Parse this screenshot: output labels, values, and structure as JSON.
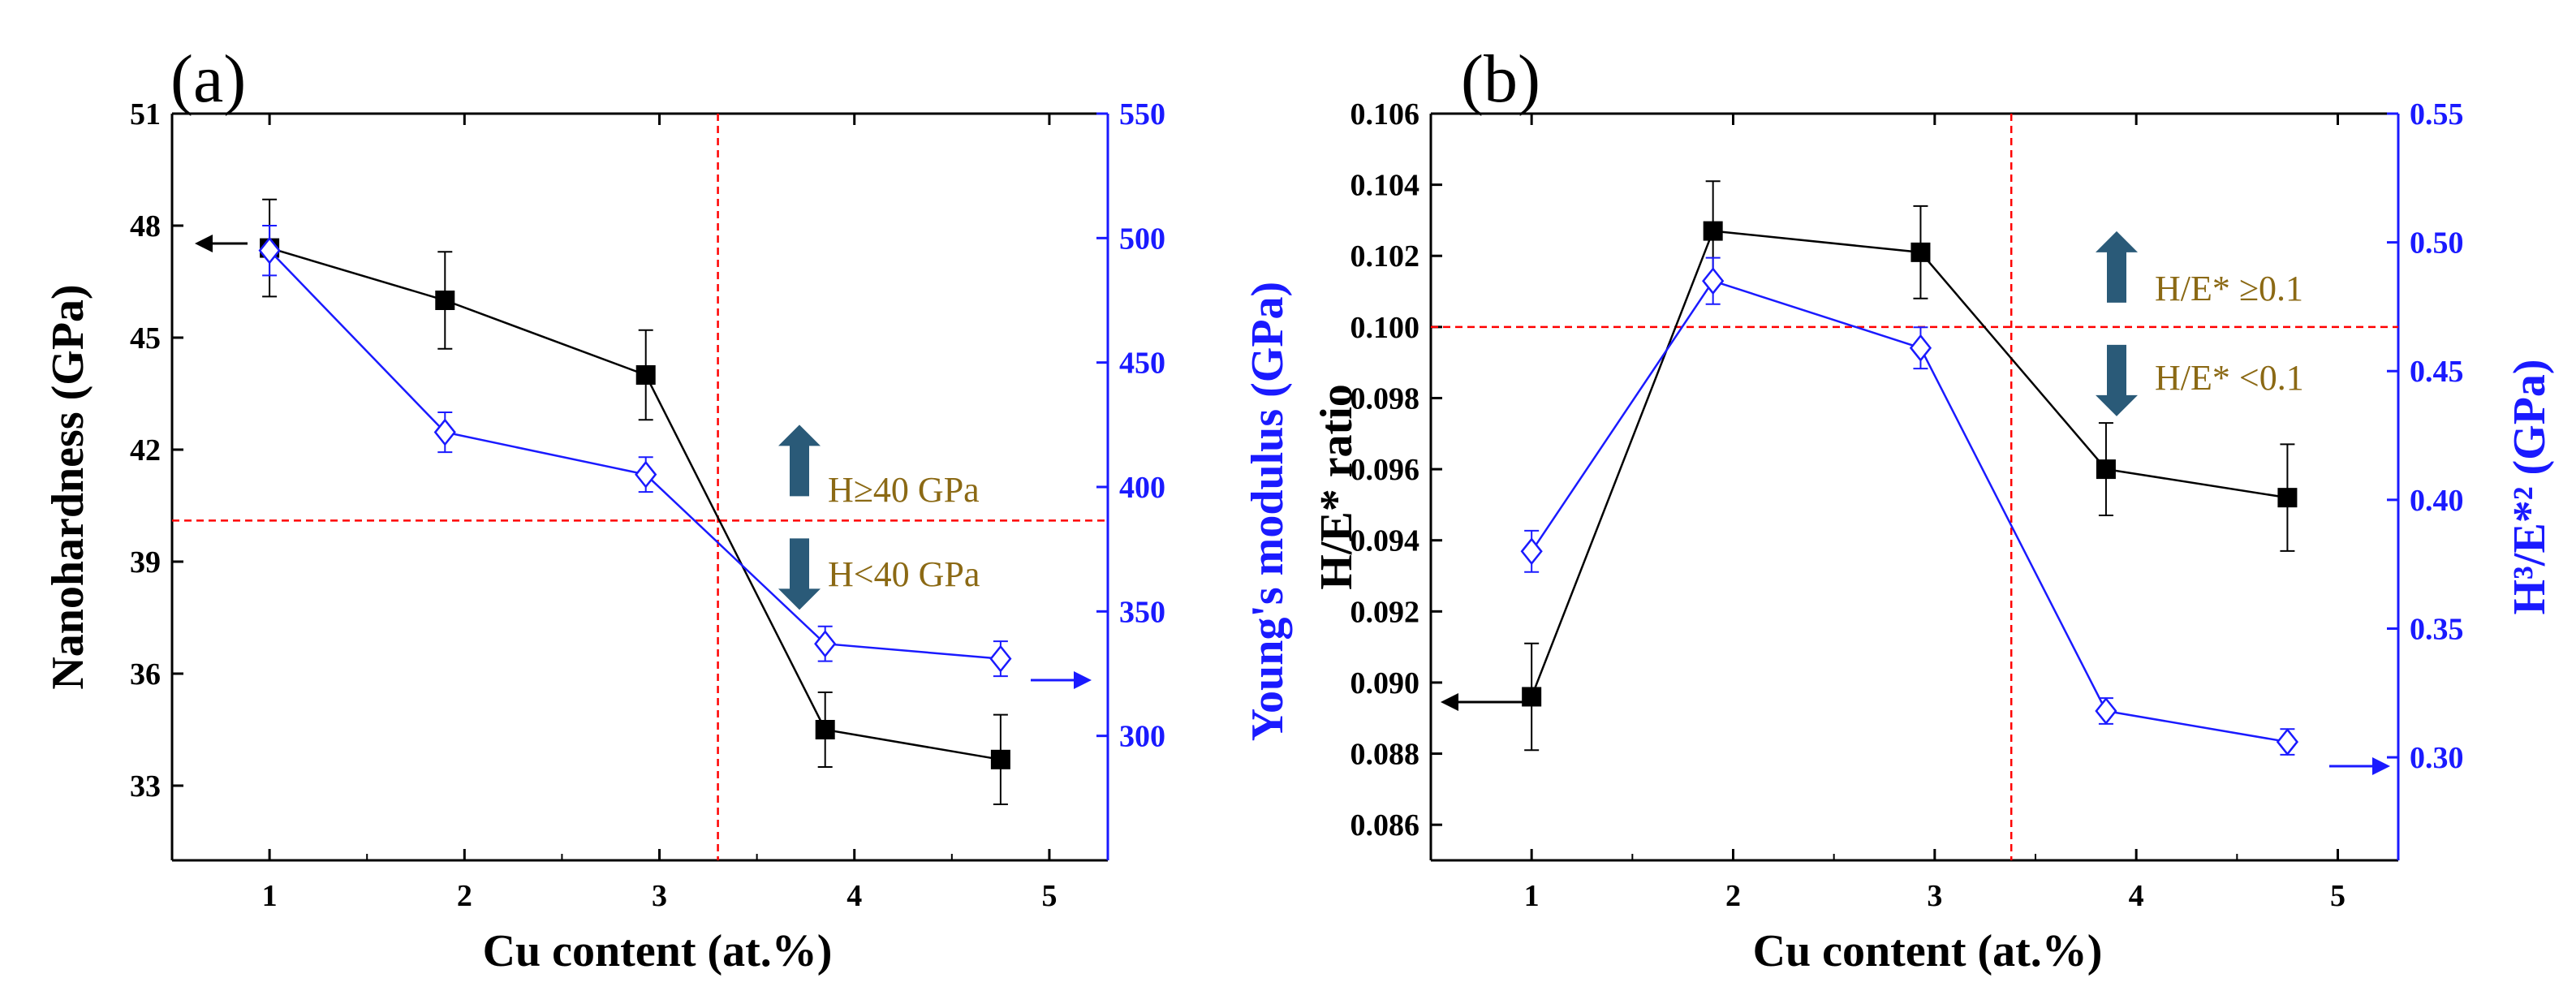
{
  "colors": {
    "left_series": "#000000",
    "right_series": "#1a1aff",
    "threshold": "#ff0000",
    "arrow_fill": "#2a5a78",
    "annotation_text": "#8b6914"
  },
  "chart_data": [
    {
      "type": "line",
      "panel_label": "(a)",
      "xlabel": "Cu content (at.%)",
      "ylabel_left": "Nanohardness (GPa)",
      "ylabel_right": "Young's modulus (GPa)",
      "xlim": [
        0.5,
        5.3
      ],
      "ylim_left": [
        31,
        51
      ],
      "ylim_right": [
        250,
        550
      ],
      "xticks": [
        "1",
        "2",
        "3",
        "4",
        "5"
      ],
      "yticks_left": [
        "33",
        "36",
        "39",
        "42",
        "45",
        "48",
        "51"
      ],
      "yticks_right": [
        "300",
        "350",
        "400",
        "450",
        "500",
        "550"
      ],
      "x": [
        1.0,
        1.9,
        2.93,
        3.85,
        4.75
      ],
      "series": [
        {
          "name": "Nanohardness",
          "axis": "left",
          "marker": "filled-square",
          "values": [
            47.4,
            46.0,
            44.0,
            34.5,
            33.7
          ],
          "errors": [
            1.3,
            1.3,
            1.2,
            1.0,
            1.2
          ]
        },
        {
          "name": "Young's modulus",
          "axis": "right",
          "marker": "open-diamond",
          "values": [
            495,
            422,
            405,
            337,
            331
          ],
          "errors": [
            10,
            8,
            7,
            7,
            7
          ]
        }
      ],
      "vline": 3.3,
      "hline_left": 40.1,
      "annotations": [
        "H≥40 GPa",
        "H<40 GPa"
      ]
    },
    {
      "type": "line",
      "panel_label": "(b)",
      "xlabel": "Cu content (at.%)",
      "ylabel_left": "H/E* ratio",
      "ylabel_right": "H³/E*² (GPa)",
      "xlim": [
        0.5,
        5.3
      ],
      "ylim_left": [
        0.085,
        0.106
      ],
      "ylim_right": [
        0.26,
        0.55
      ],
      "xticks": [
        "1",
        "2",
        "3",
        "4",
        "5"
      ],
      "yticks_left": [
        "0.086",
        "0.088",
        "0.090",
        "0.092",
        "0.094",
        "0.096",
        "0.098",
        "0.100",
        "0.102",
        "0.104",
        "0.106"
      ],
      "yticks_right": [
        "0.30",
        "0.35",
        "0.40",
        "0.45",
        "0.50",
        "0.55"
      ],
      "x": [
        1.0,
        1.9,
        2.93,
        3.85,
        4.75
      ],
      "series": [
        {
          "name": "H/E*",
          "axis": "left",
          "marker": "filled-square",
          "values": [
            0.0896,
            0.1027,
            0.1021,
            0.096,
            0.0952
          ],
          "errors": [
            0.0015,
            0.0014,
            0.0013,
            0.0013,
            0.0015
          ]
        },
        {
          "name": "H³/E*²",
          "axis": "right",
          "marker": "open-diamond",
          "values": [
            0.38,
            0.485,
            0.459,
            0.318,
            0.306
          ],
          "errors": [
            0.008,
            0.009,
            0.008,
            0.005,
            0.005
          ]
        }
      ],
      "vline": 3.38,
      "hline_left": 0.1,
      "annotations": [
        "H/E* ≥0.1",
        "H/E* <0.1"
      ]
    }
  ]
}
